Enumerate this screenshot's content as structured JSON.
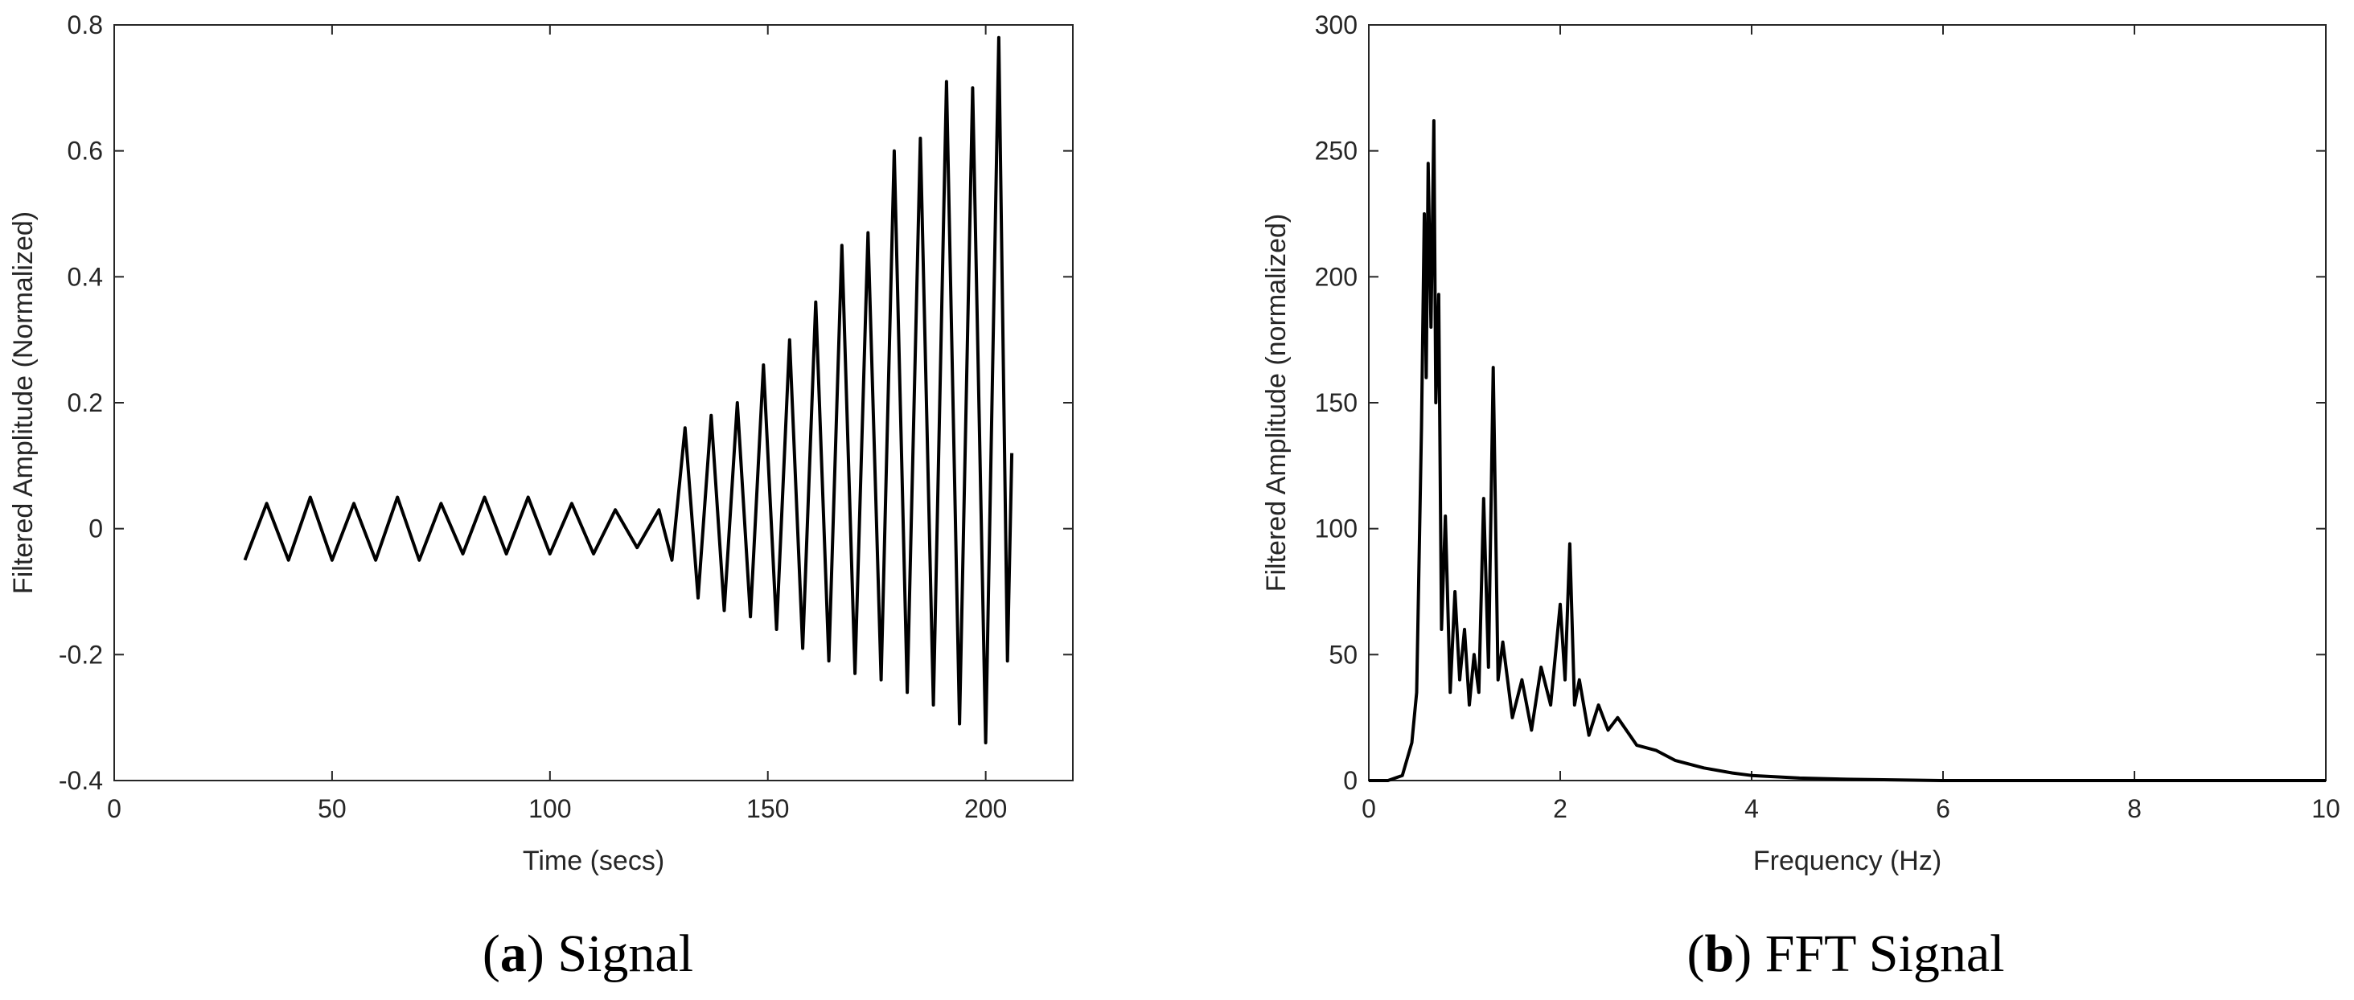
{
  "chart_data": [
    {
      "type": "line",
      "caption_letter": "a",
      "caption_text": "Signal",
      "xlabel": "Time (secs)",
      "ylabel": "Filtered Amplitude (Normalized)",
      "xlim": [
        0,
        220
      ],
      "ylim": [
        -0.4,
        0.8
      ],
      "xticks": [
        0,
        50,
        100,
        150,
        200
      ],
      "yticks": [
        -0.4,
        -0.2,
        0,
        0.2,
        0.4,
        0.6,
        0.8
      ],
      "xtick_labels": [
        "0",
        "50",
        "100",
        "150",
        "200"
      ],
      "ytick_labels": [
        "-0.4",
        "-0.2",
        "0",
        "0.2",
        "0.4",
        "0.6",
        "0.8"
      ],
      "grid": false,
      "line_color": "#000000",
      "series": [
        {
          "x": [
            30,
            35,
            40,
            45,
            50,
            55,
            60,
            65,
            70,
            75,
            80,
            85,
            90,
            95,
            100,
            105,
            110,
            115,
            120,
            125,
            128,
            131,
            134,
            137,
            140,
            143,
            146,
            149,
            152,
            155,
            158,
            161,
            164,
            167,
            170,
            173,
            176,
            179,
            182,
            185,
            188,
            191,
            194,
            197,
            200,
            203,
            205,
            206
          ],
          "y": [
            -0.05,
            0.04,
            -0.05,
            0.05,
            -0.05,
            0.04,
            -0.05,
            0.05,
            -0.05,
            0.04,
            -0.04,
            0.05,
            -0.04,
            0.05,
            -0.04,
            0.04,
            -0.04,
            0.03,
            -0.03,
            0.03,
            -0.05,
            0.16,
            -0.11,
            0.18,
            -0.13,
            0.2,
            -0.14,
            0.26,
            -0.16,
            0.3,
            -0.19,
            0.36,
            -0.21,
            0.45,
            -0.23,
            0.47,
            -0.24,
            0.6,
            -0.26,
            0.62,
            -0.28,
            0.71,
            -0.31,
            0.7,
            -0.34,
            0.78,
            -0.21,
            0.12
          ]
        }
      ]
    },
    {
      "type": "line",
      "caption_letter": "b",
      "caption_text": "FFT Signal",
      "xlabel": "Frequency (Hz)",
      "ylabel": "Filtered Amplitude (normalized)",
      "xlim": [
        0,
        10
      ],
      "ylim": [
        0,
        300
      ],
      "xticks": [
        0,
        2,
        4,
        6,
        8,
        10
      ],
      "yticks": [
        0,
        50,
        100,
        150,
        200,
        250,
        300
      ],
      "xtick_labels": [
        "0",
        "2",
        "4",
        "6",
        "8",
        "10"
      ],
      "ytick_labels": [
        "0",
        "50",
        "100",
        "150",
        "200",
        "250",
        "300"
      ],
      "grid": false,
      "line_color": "#000000",
      "series": [
        {
          "x": [
            0,
            0.2,
            0.35,
            0.45,
            0.5,
            0.55,
            0.58,
            0.6,
            0.62,
            0.65,
            0.68,
            0.7,
            0.73,
            0.76,
            0.8,
            0.85,
            0.9,
            0.95,
            1.0,
            1.05,
            1.1,
            1.15,
            1.2,
            1.25,
            1.3,
            1.35,
            1.4,
            1.5,
            1.6,
            1.7,
            1.8,
            1.9,
            2.0,
            2.05,
            2.1,
            2.15,
            2.2,
            2.3,
            2.4,
            2.5,
            2.6,
            2.8,
            3.0,
            3.2,
            3.5,
            3.8,
            4.0,
            4.5,
            5,
            6,
            7,
            8,
            9,
            10
          ],
          "y": [
            0,
            0,
            2,
            15,
            35,
            140,
            225,
            160,
            245,
            180,
            262,
            150,
            193,
            60,
            105,
            35,
            75,
            40,
            60,
            30,
            50,
            35,
            112,
            45,
            164,
            40,
            55,
            25,
            40,
            20,
            45,
            30,
            70,
            40,
            94,
            30,
            40,
            18,
            30,
            20,
            25,
            14,
            12,
            8,
            5,
            3,
            2,
            1,
            0.5,
            0,
            0,
            0,
            0,
            0
          ]
        }
      ]
    }
  ]
}
